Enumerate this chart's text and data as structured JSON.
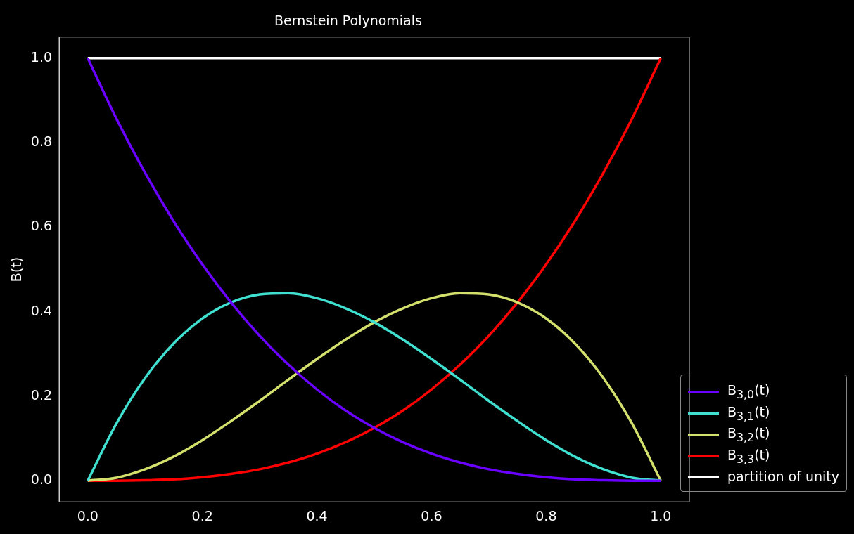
{
  "chart_data": {
    "type": "line",
    "title": "Bernstein Polynomials",
    "ylabel": "B(t)",
    "x": [
      0,
      0.05,
      0.1,
      0.15,
      0.2,
      0.25,
      0.3,
      0.35,
      0.4,
      0.45,
      0.5,
      0.55,
      0.6,
      0.65,
      0.7,
      0.75,
      0.8,
      0.85,
      0.9,
      0.95,
      1
    ],
    "series": [
      {
        "name": "B$_{3,0}$(t)",
        "color": "#6a00ff",
        "values": [
          1,
          0.857,
          0.729,
          0.614,
          0.512,
          0.422,
          0.343,
          0.275,
          0.216,
          0.166,
          0.125,
          0.091,
          0.064,
          0.043,
          0.027,
          0.016,
          0.008,
          0.003,
          0.001,
          0,
          0
        ]
      },
      {
        "name": "B$_{3,1}$(t)",
        "color": "#40e0d0",
        "values": [
          0,
          0.135,
          0.243,
          0.325,
          0.384,
          0.422,
          0.441,
          0.444,
          0.432,
          0.408,
          0.375,
          0.334,
          0.288,
          0.239,
          0.189,
          0.141,
          0.096,
          0.057,
          0.027,
          0.007,
          0
        ]
      },
      {
        "name": "B$_{3,2}$(t)",
        "color": "#d4e06c",
        "values": [
          0,
          0.007,
          0.027,
          0.057,
          0.096,
          0.141,
          0.189,
          0.239,
          0.288,
          0.334,
          0.375,
          0.408,
          0.432,
          0.444,
          0.441,
          0.422,
          0.384,
          0.325,
          0.243,
          0.135,
          0
        ]
      },
      {
        "name": "B$_{3,3}$(t)",
        "color": "#ff0000",
        "values": [
          0,
          0,
          0.001,
          0.003,
          0.008,
          0.016,
          0.027,
          0.043,
          0.064,
          0.091,
          0.125,
          0.166,
          0.216,
          0.275,
          0.343,
          0.422,
          0.512,
          0.614,
          0.729,
          0.857,
          1
        ]
      },
      {
        "name": "partition of unity",
        "color": "#ffffff",
        "values": [
          1,
          1,
          1,
          1,
          1,
          1,
          1,
          1,
          1,
          1,
          1,
          1,
          1,
          1,
          1,
          1,
          1,
          1,
          1,
          1,
          1
        ]
      }
    ],
    "xlim": [
      -0.05,
      1.05
    ],
    "ylim": [
      -0.05,
      1.05
    ],
    "xticks": [
      {
        "value": 0,
        "label": "0.0"
      },
      0.2,
      0.4,
      0.6,
      0.8,
      {
        "value": 1,
        "label": "1.0"
      }
    ],
    "yticks": [
      {
        "value": 0,
        "label": "0.0"
      },
      0.2,
      0.4,
      0.6,
      0.8,
      {
        "value": 1,
        "label": "1.0"
      }
    ],
    "grid": false,
    "legend": "bottom right",
    "marker": "none",
    "line_style": "solid"
  }
}
